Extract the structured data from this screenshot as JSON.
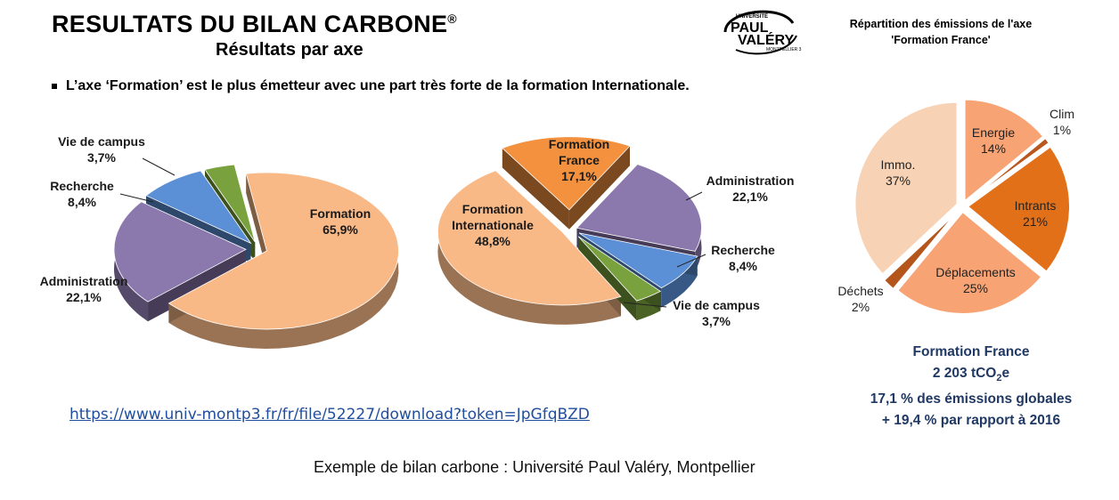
{
  "header": {
    "title": "RESULTATS DU BILAN CARBONE",
    "title_mark": "®",
    "subtitle": "Résultats par axe",
    "bullet": "L’axe ‘Formation’ est le plus émetteur avec une part très forte de la formation Internationale."
  },
  "logo": {
    "top": "UNIVERSITÉ",
    "line1": "PAUL",
    "line2": "VALÉRY",
    "bottom": "MONTPELLIER 3"
  },
  "chart_data": [
    {
      "type": "pie",
      "style": "3d-exploded",
      "slices": [
        {
          "label": "Formation",
          "value_text": "65,9%",
          "value": 65.9,
          "color": "#f9b987"
        },
        {
          "label": "Administration",
          "value_text": "22,1%",
          "value": 22.1,
          "color": "#8b78ad"
        },
        {
          "label": "Recherche",
          "value_text": "8,4%",
          "value": 8.4,
          "color": "#5b8fd6"
        },
        {
          "label": "Vie de campus",
          "value_text": "3,7%",
          "value": 3.7,
          "color": "#79a23e"
        }
      ]
    },
    {
      "type": "pie",
      "style": "3d-exploded",
      "slices": [
        {
          "label": "Formation France",
          "value_text": "17,1%",
          "value": 17.1,
          "color": "#f3913f"
        },
        {
          "label": "Administration",
          "value_text": "22,1%",
          "value": 22.1,
          "color": "#8b78ad"
        },
        {
          "label": "Recherche",
          "value_text": "8,4%",
          "value": 8.4,
          "color": "#5b8fd6"
        },
        {
          "label": "Vie de campus",
          "value_text": "3,7%",
          "value": 3.7,
          "color": "#79a23e"
        },
        {
          "label": "Formation Internationale",
          "value_text": "48,8%",
          "value": 48.8,
          "color": "#f9b987"
        }
      ]
    },
    {
      "type": "pie",
      "title": "Répartition des émissions de l'axe 'Formation France'",
      "slices": [
        {
          "label": "Energie",
          "value_text": "14%",
          "value": 14,
          "color": "#f7a374"
        },
        {
          "label": "Clim",
          "value_text": "1%",
          "value": 1,
          "color": "#b8581e"
        },
        {
          "label": "Intrants",
          "value_text": "21%",
          "value": 21,
          "color": "#e27018"
        },
        {
          "label": "Déplacements",
          "value_text": "25%",
          "value": 25,
          "color": "#f7a374"
        },
        {
          "label": "Déchets",
          "value_text": "2%",
          "value": 2,
          "color": "#b4561c"
        },
        {
          "label": "Immo.",
          "value_text": "37%",
          "value": 37,
          "color": "#f8d2b4"
        }
      ]
    }
  ],
  "summary": {
    "name": "Formation France",
    "amount_main": "2 203 tCO",
    "amount_sub": "2",
    "amount_tail": "e",
    "share": "17,1 % des émissions globales",
    "change": "+ 19,4 % par rapport à 2016"
  },
  "link": "https://www.univ-montp3.fr/fr/file/52227/download?token=JpGfqBZD",
  "caption": "Exemple de bilan carbone : Université Paul Valéry, Montpellier"
}
